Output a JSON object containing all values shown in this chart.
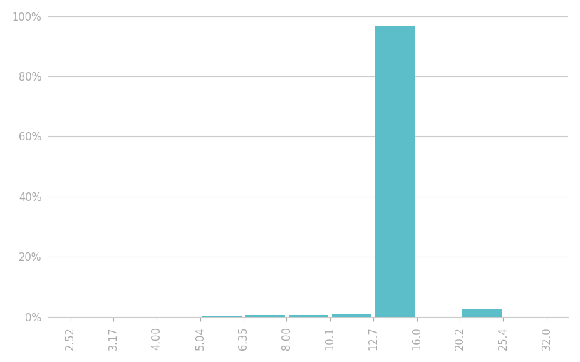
{
  "categories": [
    "2.52",
    "3.17",
    "4.00",
    "5.04",
    "6.35",
    "8.00",
    "10.1",
    "12.7",
    "16.0",
    "20.2",
    "25.4",
    "32.0"
  ],
  "values": [
    0.0,
    0.0,
    0.0,
    0.3,
    0.5,
    0.7,
    0.9,
    96.5,
    0.0,
    2.5,
    0.0,
    0.0
  ],
  "bar_color": "#5bbec8",
  "ylim": [
    0,
    100
  ],
  "yticks": [
    0,
    20,
    40,
    60,
    80,
    100
  ],
  "ytick_labels": [
    "0%",
    "20%",
    "40%",
    "60%",
    "80%",
    "100%"
  ],
  "background_color": "#ffffff",
  "grid_color": "#cccccc",
  "tick_color": "#aaaaaa",
  "label_color": "#aaaaaa",
  "label_fontsize": 10.5
}
